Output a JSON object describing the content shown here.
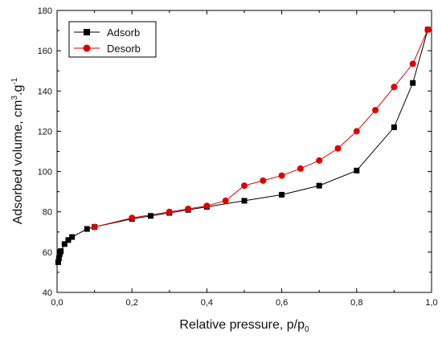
{
  "chart_data": {
    "type": "line",
    "title": "",
    "xlabel": "Relative pressure, p/p",
    "xlabel_subscript": "0",
    "ylabel_prefix": "Adsorbed volume, cm",
    "ylabel_sup1": "3",
    "ylabel_mid": ".g",
    "ylabel_sup2": "-1",
    "xlim": [
      0.0,
      1.0
    ],
    "ylim": [
      40,
      180
    ],
    "x_ticks": [
      0.0,
      0.2,
      0.4,
      0.6,
      0.8,
      1.0
    ],
    "x_tick_labels": [
      "0,0",
      "0,2",
      "0,4",
      "0,6",
      "0,8",
      "1,0"
    ],
    "y_ticks": [
      40,
      60,
      80,
      100,
      120,
      140,
      160,
      180
    ],
    "y_tick_labels": [
      "40",
      "60",
      "80",
      "100",
      "120",
      "140",
      "160",
      "180"
    ],
    "grid": false,
    "legend_position": "top-left",
    "series": [
      {
        "name": "Adsorb",
        "color": "#000000",
        "marker": "square",
        "x": [
          0.003,
          0.005,
          0.007,
          0.008,
          0.01,
          0.02,
          0.03,
          0.04,
          0.08,
          0.1,
          0.2,
          0.25,
          0.3,
          0.35,
          0.4,
          0.5,
          0.6,
          0.7,
          0.8,
          0.9,
          0.95,
          0.99
        ],
        "y": [
          55,
          57,
          59,
          60,
          60.5,
          64,
          66,
          67.5,
          71.5,
          72.5,
          76.5,
          78,
          79.5,
          81,
          82.5,
          85.5,
          88.5,
          93,
          100.5,
          122,
          144,
          170.5
        ]
      },
      {
        "name": "Desorb",
        "color": "#dd0000",
        "marker": "circle",
        "x": [
          0.1,
          0.2,
          0.3,
          0.35,
          0.4,
          0.45,
          0.5,
          0.55,
          0.6,
          0.65,
          0.7,
          0.75,
          0.8,
          0.85,
          0.9,
          0.95,
          0.99
        ],
        "y": [
          72.5,
          77,
          80,
          81.5,
          83,
          85.5,
          93,
          95.5,
          98,
          101.5,
          105.5,
          111.5,
          120,
          130.5,
          142,
          153.5,
          170.5
        ]
      }
    ]
  }
}
